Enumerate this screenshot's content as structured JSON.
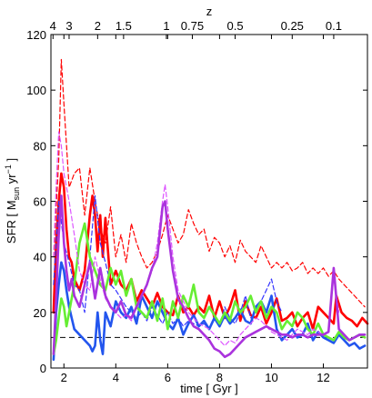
{
  "chart_data": {
    "type": "line",
    "title": "",
    "xlabel": "time [ Gyr ]",
    "ylabel": "SFR [ M_sun yr^-1 ]",
    "ylabel_parts": {
      "pre": "SFR [ M",
      "sub": "sun",
      "mid": " yr",
      "sup": "−1",
      "post": " ]"
    },
    "top_axis_label": "z",
    "xlim": [
      1.5,
      13.7
    ],
    "ylim": [
      0,
      120
    ],
    "grid": false,
    "legend": "none",
    "x_ticks": [
      2,
      4,
      6,
      8,
      10,
      12
    ],
    "x_tick_labels": [
      "2",
      "4",
      "6",
      "8",
      "10",
      "12"
    ],
    "y_ticks": [
      0,
      20,
      40,
      60,
      80,
      100,
      120
    ],
    "y_tick_labels": [
      "0",
      "20",
      "40",
      "60",
      "80",
      "100",
      "120"
    ],
    "top_ticks": [
      {
        "label": "4",
        "t": 1.58
      },
      {
        "label": "3",
        "t": 2.2
      },
      {
        "label": "2",
        "t": 3.3
      },
      {
        "label": "1.5",
        "t": 4.3
      },
      {
        "label": "1",
        "t": 5.95
      },
      {
        "label": "0.75",
        "t": 6.95
      },
      {
        "label": "0.5",
        "t": 8.6
      },
      {
        "label": "0.25",
        "t": 10.8
      },
      {
        "label": "0.1",
        "t": 12.4
      }
    ],
    "reference_line": {
      "y": 11,
      "style": "dashed",
      "color": "#000000"
    },
    "series": [
      {
        "color": "#ff0000",
        "style": "dashed",
        "x": [
          1.6,
          1.8,
          1.9,
          2.0,
          2.2,
          2.4,
          2.6,
          2.8,
          3.0,
          3.2,
          3.4,
          3.6,
          3.8,
          4.0,
          4.2,
          4.4,
          4.6,
          4.8,
          5.0,
          5.2,
          5.4,
          5.6,
          5.8,
          6.0,
          6.2,
          6.4,
          6.6,
          6.8,
          7.0,
          7.2,
          7.4,
          7.6,
          7.8,
          8.0,
          8.2,
          8.4,
          8.6,
          8.8,
          9.0,
          9.2,
          9.4,
          9.6,
          9.8,
          10.0,
          10.2,
          10.4,
          10.6,
          10.8,
          11.0,
          11.2,
          11.4,
          11.6,
          11.8,
          12.0,
          12.2,
          12.4,
          12.6,
          12.8,
          13.0,
          13.2,
          13.4,
          13.6
        ],
        "y": [
          40,
          75,
          111,
          95,
          65,
          70,
          72,
          55,
          72,
          60,
          50,
          45,
          58,
          40,
          48,
          38,
          52,
          45,
          40,
          36,
          38,
          42,
          48,
          55,
          50,
          45,
          48,
          57,
          52,
          48,
          50,
          42,
          47,
          45,
          40,
          44,
          38,
          46,
          42,
          40,
          38,
          44,
          40,
          36,
          38,
          36,
          38,
          35,
          36,
          38,
          34,
          36,
          34,
          36,
          33,
          35,
          32,
          30,
          28,
          26,
          24,
          22
        ]
      },
      {
        "color": "#ff0000",
        "style": "solid",
        "x": [
          1.6,
          1.7,
          1.8,
          1.9,
          2.0,
          2.1,
          2.2,
          2.3,
          2.4,
          2.6,
          2.8,
          3.0,
          3.1,
          3.2,
          3.3,
          3.4,
          3.5,
          3.6,
          3.8,
          4.0,
          4.2,
          4.4,
          4.6,
          4.8,
          5.0,
          5.2,
          5.4,
          5.6,
          5.8,
          6.0,
          6.2,
          6.4,
          6.6,
          6.8,
          7.0,
          7.2,
          7.4,
          7.6,
          7.8,
          8.0,
          8.2,
          8.4,
          8.6,
          8.8,
          9.0,
          9.2,
          9.4,
          9.6,
          9.8,
          10.0,
          10.2,
          10.4,
          10.6,
          10.8,
          11.0,
          11.2,
          11.4,
          11.6,
          11.8,
          12.0,
          12.2,
          12.4,
          12.5,
          12.7,
          12.9,
          13.1,
          13.3,
          13.5,
          13.7
        ],
        "y": [
          20,
          45,
          60,
          70,
          65,
          50,
          40,
          38,
          32,
          28,
          35,
          55,
          62,
          55,
          42,
          55,
          40,
          54,
          30,
          35,
          30,
          28,
          32,
          24,
          28,
          25,
          22,
          27,
          22,
          20,
          19,
          26,
          20,
          22,
          19,
          22,
          20,
          26,
          18,
          24,
          18,
          22,
          28,
          17,
          24,
          19,
          18,
          22,
          16,
          20,
          25,
          17,
          18,
          20,
          15,
          18,
          20,
          14,
          22,
          20,
          18,
          16,
          26,
          20,
          18,
          17,
          15,
          18,
          16
        ]
      },
      {
        "color": "#3333ff",
        "style": "dashed",
        "x": [
          1.6,
          1.8,
          2.0,
          2.2,
          2.4,
          2.6,
          2.8,
          3.0,
          3.2,
          3.4,
          3.6,
          3.8,
          4.0,
          4.2,
          4.4,
          4.6,
          4.8,
          5.0,
          5.2,
          5.4,
          5.6,
          5.8,
          6.0,
          6.2,
          6.4,
          6.6,
          6.8,
          7.0,
          7.2,
          7.4,
          7.6,
          7.8,
          8.0,
          8.2,
          8.4,
          8.6,
          8.8,
          9.0,
          9.2,
          9.4,
          9.6,
          9.8,
          10.0,
          10.2,
          10.4
        ],
        "y": [
          30,
          60,
          45,
          38,
          30,
          28,
          20,
          40,
          62,
          45,
          38,
          30,
          28,
          25,
          22,
          20,
          18,
          20,
          17,
          22,
          19,
          16,
          20,
          16,
          18,
          15,
          17,
          16,
          15,
          16,
          14,
          18,
          15,
          22,
          18,
          16,
          20,
          26,
          18,
          20,
          24,
          28,
          32,
          24,
          20
        ]
      },
      {
        "color": "#2255ee",
        "style": "solid",
        "x": [
          1.6,
          1.7,
          1.8,
          1.9,
          2.0,
          2.1,
          2.2,
          2.3,
          2.4,
          2.6,
          2.8,
          3.0,
          3.1,
          3.2,
          3.3,
          3.4,
          3.5,
          3.6,
          3.8,
          4.0,
          4.2,
          4.4,
          4.6,
          4.8,
          5.0,
          5.2,
          5.4,
          5.6,
          5.8,
          6.0,
          6.2,
          6.4,
          6.6,
          6.8,
          7.0,
          7.2,
          7.4,
          7.6,
          7.8,
          8.0,
          8.2,
          8.4,
          8.6,
          8.8,
          9.0,
          9.2,
          9.4,
          9.6,
          9.8,
          10.0,
          10.2,
          10.4,
          10.6,
          10.8,
          11.0,
          11.2,
          11.4,
          11.6,
          11.8,
          12.0,
          12.2,
          12.4,
          12.6,
          12.8,
          13.0,
          13.2,
          13.4,
          13.6
        ],
        "y": [
          3,
          20,
          30,
          38,
          35,
          28,
          22,
          18,
          14,
          12,
          10,
          8,
          6,
          8,
          20,
          10,
          5,
          20,
          15,
          24,
          20,
          18,
          22,
          16,
          26,
          22,
          18,
          24,
          20,
          16,
          14,
          18,
          12,
          16,
          19,
          15,
          17,
          14,
          18,
          15,
          19,
          16,
          18,
          21,
          17,
          16,
          22,
          24,
          20,
          26,
          14,
          10,
          12,
          14,
          11,
          12,
          16,
          10,
          13,
          11,
          10,
          9,
          12,
          10,
          8,
          9,
          7,
          8
        ]
      },
      {
        "color": "#66ee33",
        "style": "solid",
        "x": [
          1.6,
          1.7,
          1.8,
          1.9,
          2.0,
          2.1,
          2.2,
          2.3,
          2.4,
          2.6,
          2.8,
          3.0,
          3.2,
          3.4,
          3.6,
          3.8,
          4.0,
          4.2,
          4.4,
          4.6,
          4.8,
          5.0,
          5.2,
          5.4,
          5.6,
          5.8,
          6.0,
          6.2,
          6.4,
          6.6,
          6.8,
          7.0,
          7.2,
          7.4,
          7.6,
          7.8,
          8.0,
          8.2,
          8.4,
          8.6,
          8.8,
          9.0,
          9.2,
          9.4,
          9.6,
          9.8,
          10.0,
          10.2,
          10.4,
          10.6,
          10.8,
          11.0,
          11.2,
          11.4,
          11.6,
          11.8,
          12.0,
          12.2,
          12.4,
          12.6,
          12.8,
          13.0,
          13.2,
          13.4,
          13.6
        ],
        "y": [
          5,
          10,
          18,
          25,
          22,
          15,
          20,
          25,
          30,
          45,
          52,
          40,
          35,
          30,
          28,
          36,
          30,
          35,
          26,
          32,
          22,
          20,
          18,
          24,
          17,
          25,
          14,
          24,
          18,
          26,
          22,
          30,
          20,
          18,
          22,
          19,
          16,
          20,
          17,
          24,
          20,
          22,
          26,
          20,
          24,
          18,
          22,
          20,
          14,
          17,
          15,
          20,
          18,
          14,
          12,
          16,
          12,
          11,
          10,
          13,
          11,
          10,
          11,
          12,
          11
        ]
      },
      {
        "color": "#dd55ff",
        "style": "dashed",
        "x": [
          1.6,
          1.7,
          1.8,
          1.9,
          2.0,
          2.2,
          2.4,
          2.6,
          2.8,
          3.0,
          3.2,
          3.4,
          3.6,
          3.8,
          4.0,
          4.2,
          4.4,
          4.6,
          4.8,
          5.0,
          5.2,
          5.4,
          5.6,
          5.8,
          5.9,
          6.0,
          6.2,
          6.4,
          6.6,
          6.8,
          7.0,
          7.2,
          7.4,
          7.6,
          7.8,
          8.0,
          8.2,
          8.4,
          8.6,
          8.8,
          9.0,
          9.2,
          9.4,
          9.6,
          9.8,
          10.0,
          10.2,
          10.4,
          10.6,
          10.8,
          11.0,
          11.2,
          11.4,
          11.6,
          11.8,
          12.0,
          12.2,
          12.4,
          12.6
        ],
        "y": [
          40,
          65,
          85,
          80,
          70,
          60,
          48,
          35,
          30,
          28,
          40,
          32,
          25,
          22,
          20,
          18,
          19,
          17,
          22,
          26,
          30,
          35,
          45,
          60,
          66,
          58,
          40,
          28,
          24,
          20,
          18,
          16,
          15,
          14,
          12,
          10,
          8,
          10,
          9,
          12,
          14,
          16,
          18,
          17,
          15,
          13,
          12,
          11,
          10,
          12,
          14,
          13,
          12,
          14,
          13,
          12,
          13,
          33,
          20
        ]
      },
      {
        "color": "#aa33dd",
        "style": "solid",
        "x": [
          1.6,
          1.7,
          1.8,
          1.9,
          2.0,
          2.1,
          2.2,
          2.3,
          2.4,
          2.6,
          2.8,
          3.0,
          3.2,
          3.4,
          3.6,
          3.8,
          4.0,
          4.2,
          4.4,
          4.6,
          4.8,
          5.0,
          5.2,
          5.4,
          5.6,
          5.8,
          5.9,
          6.0,
          6.2,
          6.4,
          6.6,
          6.8,
          7.0,
          7.2,
          7.4,
          7.6,
          7.8,
          8.0,
          8.2,
          8.4,
          8.6,
          8.8,
          9.0,
          9.2,
          9.4,
          9.6,
          9.8,
          10.0,
          10.2,
          10.4,
          10.6,
          10.8,
          11.0,
          11.2,
          11.4,
          11.6,
          11.8,
          12.0,
          12.2,
          12.4,
          12.5,
          12.6,
          12.8,
          13.0,
          13.2,
          13.4,
          13.6
        ],
        "y": [
          5,
          25,
          48,
          62,
          45,
          35,
          28,
          32,
          26,
          22,
          30,
          38,
          25,
          36,
          26,
          22,
          20,
          24,
          19,
          18,
          22,
          26,
          30,
          36,
          40,
          58,
          60,
          50,
          35,
          25,
          22,
          18,
          15,
          14,
          12,
          10,
          7,
          6,
          4,
          5,
          7,
          9,
          11,
          12,
          13,
          14,
          15,
          14,
          13,
          12,
          12,
          11,
          12,
          12,
          11,
          12,
          12,
          12,
          13,
          36,
          25,
          14,
          12,
          10,
          11,
          12,
          12
        ]
      }
    ]
  }
}
